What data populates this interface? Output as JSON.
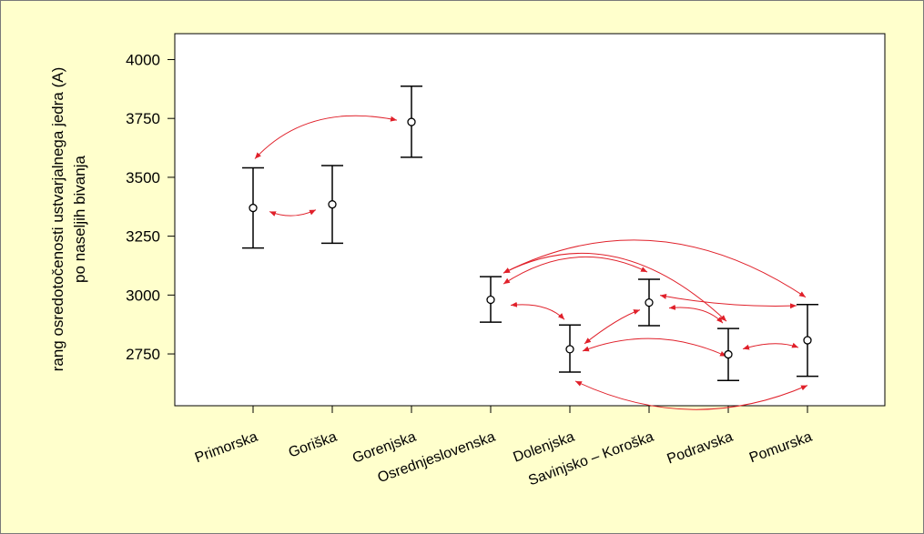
{
  "chart_data": {
    "type": "errorbar",
    "categories": [
      "Primorska",
      "Goriška",
      "Gorenjska",
      "Osrednjeslovenska",
      "Dolenjska",
      "Savinjsko – Koroška",
      "Podravska",
      "Pomurska"
    ],
    "means": [
      3370,
      3385,
      3735,
      2980,
      2770,
      2968,
      2748,
      2808
    ],
    "lower": [
      3200,
      3220,
      3585,
      2885,
      2673,
      2870,
      2637,
      2655
    ],
    "upper": [
      3540,
      3550,
      3887,
      3078,
      2873,
      3067,
      2858,
      2960
    ],
    "ylabel_lines": [
      "rang osredotočenosti ustvarjalnega jedra (A)",
      "po naseljih bivanja"
    ],
    "ylim": [
      2530,
      4110
    ],
    "yticks": [
      2750,
      3000,
      3250,
      3500,
      3750,
      4000
    ],
    "grid": false,
    "marker": "circle-open",
    "comparison_arrows": [
      [
        0,
        1
      ],
      [
        0,
        2
      ],
      [
        3,
        4
      ],
      [
        3,
        5
      ],
      [
        3,
        6
      ],
      [
        3,
        7
      ],
      [
        4,
        5
      ],
      [
        4,
        6
      ],
      [
        4,
        7
      ],
      [
        5,
        6
      ],
      [
        5,
        7
      ],
      [
        6,
        7
      ]
    ],
    "colors": {
      "bars": "#000000",
      "arrows": "#e0202a",
      "background": "#ffffcc",
      "plot_background": "#ffffff"
    }
  }
}
